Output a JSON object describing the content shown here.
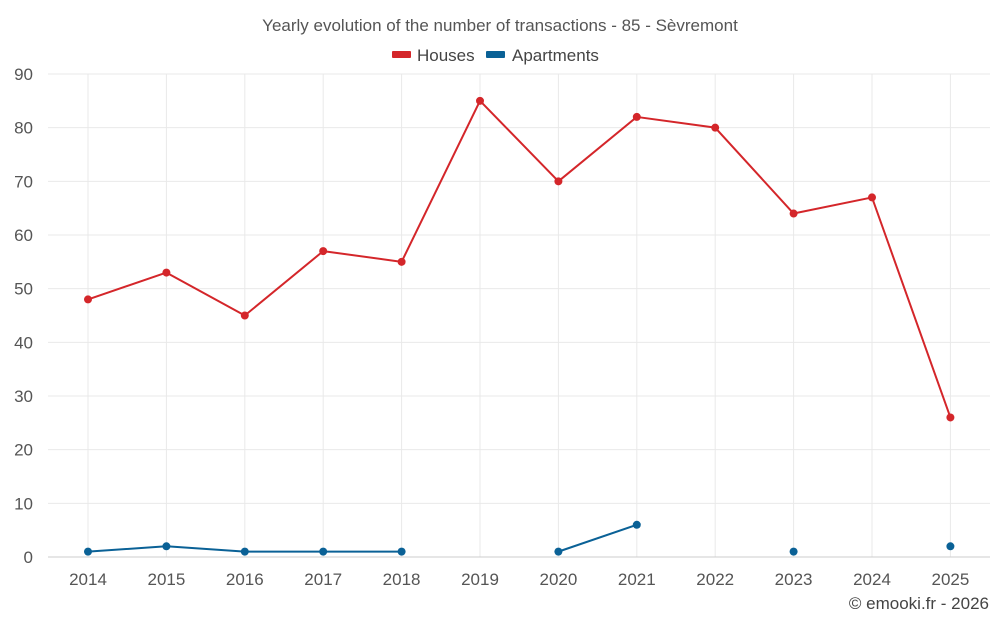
{
  "chart_data": {
    "type": "line",
    "title": "Yearly evolution of the number of transactions - 85 - Sèvremont",
    "categories": [
      "2014",
      "2015",
      "2016",
      "2017",
      "2018",
      "2019",
      "2020",
      "2021",
      "2022",
      "2023",
      "2024",
      "2025"
    ],
    "series": [
      {
        "name": "Houses",
        "color": "#d4262a",
        "values": [
          48,
          53,
          45,
          57,
          55,
          85,
          70,
          82,
          80,
          64,
          67,
          26
        ]
      },
      {
        "name": "Apartments",
        "color": "#0a6196",
        "values": [
          1,
          2,
          1,
          1,
          1,
          null,
          1,
          6,
          null,
          1,
          null,
          2
        ]
      }
    ],
    "ylim": [
      0,
      90
    ],
    "yticks": [
      0,
      10,
      20,
      30,
      40,
      50,
      60,
      70,
      80,
      90
    ],
    "xlabel": "",
    "ylabel": "",
    "grid": true,
    "legend_position": "top-center"
  },
  "credit": "© emooki.fr - 2026"
}
